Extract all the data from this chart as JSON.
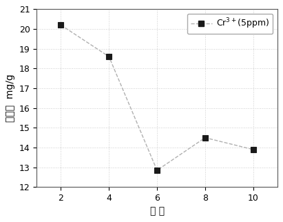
{
  "x": [
    2,
    4,
    6,
    8,
    10
  ],
  "y": [
    20.2,
    18.6,
    12.85,
    14.5,
    13.9
  ],
  "xlabel": "配 比",
  "ylabel_top": "mg/g",
  "ylabel_chinese": "吸附量",
  "xlim": [
    1,
    11
  ],
  "ylim": [
    12,
    21
  ],
  "yticks": [
    12,
    13,
    14,
    15,
    16,
    17,
    18,
    19,
    20,
    21
  ],
  "xticks": [
    2,
    4,
    6,
    8,
    10
  ],
  "line_color": "#b0b0b0",
  "marker_color": "#1a1a1a",
  "marker": "s",
  "marker_size": 6,
  "grid_color": "#cccccc",
  "background_color": "#ffffff",
  "label_fontsize": 10,
  "tick_fontsize": 9
}
